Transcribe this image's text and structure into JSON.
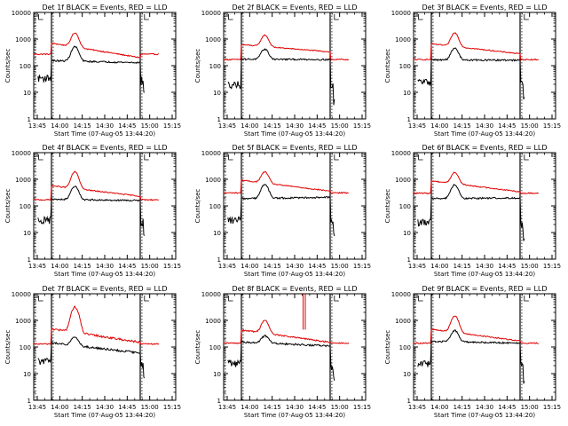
{
  "chart_data": [
    {
      "type": "line",
      "title": "Det 1f BLACK = Events, RED = LLD",
      "xlabel": "Start Time (07-Aug-05 13:44:20)",
      "ylabel": "Counts/sec",
      "yscale": "log",
      "ylim": [
        1,
        10000
      ],
      "xlim": [
        0,
        100
      ],
      "x_ticks": [
        "13:45",
        "14:00",
        "14:15",
        "14:30",
        "14:45",
        "15:00",
        "15:15"
      ],
      "y_ticks": [
        "1",
        "10",
        "100",
        "1000",
        "10000"
      ],
      "series": [
        {
          "name": "RED = LLD",
          "color": "#e00000",
          "shape": {
            "base": 320,
            "end": 200,
            "gap": 270,
            "peak": 1700,
            "tail": 270,
            "noise": 0.045
          }
        },
        {
          "name": "BLACK = Events",
          "color": "#000000",
          "shape": {
            "base": 70,
            "end": 130,
            "gap": null,
            "peak": 520,
            "tail": 35,
            "noise": 0.07
          }
        }
      ]
    },
    {
      "type": "line",
      "title": "Det 2f BLACK = Events, RED = LLD",
      "xlabel": "Start Time (07-Aug-05 13:44:20)",
      "ylabel": "Counts/sec",
      "yscale": "log",
      "ylim": [
        1,
        10000
      ],
      "xlim": [
        0,
        100
      ],
      "x_ticks": [
        "13:45",
        "14:00",
        "14:15",
        "14:30",
        "14:45",
        "15:00",
        "15:15"
      ],
      "y_ticks": [
        "1",
        "10",
        "100",
        "1000",
        "10000"
      ],
      "series": [
        {
          "name": "RED = LLD",
          "color": "#e00000",
          "shape": {
            "base": 280,
            "end": 330,
            "gap": 170,
            "peak": 1400,
            "tail": 170,
            "noise": 0.045
          }
        },
        {
          "name": "BLACK = Events",
          "color": "#000000",
          "shape": {
            "base": 80,
            "end": 170,
            "gap": null,
            "peak": 420,
            "tail": 20,
            "noise": 0.07
          }
        }
      ]
    },
    {
      "type": "line",
      "title": "Det 3f BLACK = Events, RED = LLD",
      "xlabel": "Start Time (07-Aug-05 13:44:20)",
      "ylabel": "Counts/sec",
      "yscale": "log",
      "ylim": [
        1,
        10000
      ],
      "xlim": [
        0,
        100
      ],
      "x_ticks": [
        "13:45",
        "14:00",
        "14:15",
        "14:30",
        "14:45",
        "15:00",
        "15:15"
      ],
      "y_ticks": [
        "1",
        "10",
        "100",
        "1000",
        "10000"
      ],
      "series": [
        {
          "name": "RED = LLD",
          "color": "#e00000",
          "shape": {
            "base": 300,
            "end": 280,
            "gap": 170,
            "peak": 1700,
            "tail": 170,
            "noise": 0.045
          }
        },
        {
          "name": "BLACK = Events",
          "color": "#000000",
          "shape": {
            "base": 75,
            "end": 160,
            "gap": null,
            "peak": 450,
            "tail": 25,
            "noise": 0.07
          }
        }
      ]
    },
    {
      "type": "line",
      "title": "Det 4f BLACK = Events, RED = LLD",
      "xlabel": "Start Time (07-Aug-05 13:44:20)",
      "ylabel": "Counts/sec",
      "yscale": "log",
      "ylim": [
        1,
        10000
      ],
      "xlim": [
        0,
        100
      ],
      "x_ticks": [
        "13:45",
        "14:00",
        "14:15",
        "14:30",
        "14:45",
        "15:00",
        "15:15"
      ],
      "y_ticks": [
        "1",
        "10",
        "100",
        "1000",
        "10000"
      ],
      "series": [
        {
          "name": "RED = LLD",
          "color": "#e00000",
          "shape": {
            "base": 260,
            "end": 230,
            "gap": 170,
            "peak": 1900,
            "tail": 170,
            "noise": 0.045
          }
        },
        {
          "name": "BLACK = Events",
          "color": "#000000",
          "shape": {
            "base": 80,
            "end": 160,
            "gap": null,
            "peak": 550,
            "tail": 30,
            "noise": 0.07
          }
        }
      ]
    },
    {
      "type": "line",
      "title": "Det 5f BLACK = Events, RED = LLD",
      "xlabel": "Start Time (07-Aug-05 13:44:20)",
      "ylabel": "Counts/sec",
      "yscale": "log",
      "ylim": [
        1,
        10000
      ],
      "xlim": [
        0,
        100
      ],
      "x_ticks": [
        "13:45",
        "14:00",
        "14:15",
        "14:30",
        "14:45",
        "15:00",
        "15:15"
      ],
      "y_ticks": [
        "1",
        "10",
        "100",
        "1000",
        "10000"
      ],
      "series": [
        {
          "name": "RED = LLD",
          "color": "#e00000",
          "shape": {
            "base": 420,
            "end": 360,
            "gap": 310,
            "peak": 1900,
            "tail": 310,
            "noise": 0.045
          }
        },
        {
          "name": "BLACK = Events",
          "color": "#000000",
          "shape": {
            "base": 85,
            "end": 210,
            "gap": null,
            "peak": 650,
            "tail": 30,
            "noise": 0.07
          }
        }
      ]
    },
    {
      "type": "line",
      "title": "Det 6f BLACK = Events, RED = LLD",
      "xlabel": "Start Time (07-Aug-05 13:44:20)",
      "ylabel": "Counts/sec",
      "yscale": "log",
      "ylim": [
        1,
        10000
      ],
      "xlim": [
        0,
        100
      ],
      "x_ticks": [
        "13:45",
        "14:00",
        "14:15",
        "14:30",
        "14:45",
        "15:00",
        "15:15"
      ],
      "y_ticks": [
        "1",
        "10",
        "100",
        "1000",
        "10000"
      ],
      "series": [
        {
          "name": "RED = LLD",
          "color": "#e00000",
          "shape": {
            "base": 400,
            "end": 340,
            "gap": 300,
            "peak": 1800,
            "tail": 300,
            "noise": 0.045
          }
        },
        {
          "name": "BLACK = Events",
          "color": "#000000",
          "shape": {
            "base": 85,
            "end": 200,
            "gap": null,
            "peak": 620,
            "tail": 25,
            "noise": 0.07
          }
        }
      ]
    },
    {
      "type": "line",
      "title": "Det 7f BLACK = Events, RED = LLD",
      "xlabel": "Start Time (07-Aug-05 13:44:20)",
      "ylabel": "Counts/sec",
      "yscale": "log",
      "ylim": [
        1,
        10000
      ],
      "xlim": [
        0,
        100
      ],
      "x_ticks": [
        "13:45",
        "14:00",
        "14:15",
        "14:30",
        "14:45",
        "15:00",
        "15:15"
      ],
      "y_ticks": [
        "1",
        "10",
        "100",
        "1000",
        "10000"
      ],
      "series": [
        {
          "name": "RED = LLD",
          "color": "#e00000",
          "shape": {
            "base": 220,
            "end": 150,
            "gap": 130,
            "peak": 3200,
            "tail": 130,
            "noise": 0.09
          }
        },
        {
          "name": "BLACK = Events",
          "color": "#000000",
          "shape": {
            "base": 65,
            "end": 60,
            "gap": null,
            "peak": 250,
            "tail": 30,
            "noise": 0.09
          }
        }
      ]
    },
    {
      "type": "line",
      "title": "Det 8f BLACK = Events, RED = LLD",
      "xlabel": "Start Time (07-Aug-05 13:44:20)",
      "ylabel": "Counts/sec",
      "yscale": "log",
      "ylim": [
        1,
        10000
      ],
      "xlim": [
        0,
        100
      ],
      "x_ticks": [
        "13:45",
        "14:00",
        "14:15",
        "14:30",
        "14:45",
        "15:00",
        "15:15"
      ],
      "y_ticks": [
        "1",
        "10",
        "100",
        "1000",
        "10000"
      ],
      "series": [
        {
          "name": "RED = LLD",
          "color": "#e00000",
          "shape": {
            "base": 200,
            "end": 150,
            "gap": 140,
            "peak": 1000,
            "tail": 140,
            "noise": 0.06,
            "spike": true
          }
        },
        {
          "name": "BLACK = Events",
          "color": "#000000",
          "shape": {
            "base": 70,
            "end": 110,
            "gap": null,
            "peak": 260,
            "tail": 25,
            "noise": 0.08
          }
        }
      ]
    },
    {
      "type": "line",
      "title": "Det 9f BLACK = Events, RED = LLD",
      "xlabel": "Start Time (07-Aug-05 13:44:20)",
      "ylabel": "Counts/sec",
      "yscale": "log",
      "ylim": [
        1,
        10000
      ],
      "xlim": [
        0,
        100
      ],
      "x_ticks": [
        "13:45",
        "14:00",
        "14:15",
        "14:30",
        "14:45",
        "15:00",
        "15:15"
      ],
      "y_ticks": [
        "1",
        "10",
        "100",
        "1000",
        "10000"
      ],
      "series": [
        {
          "name": "RED = LLD",
          "color": "#e00000",
          "shape": {
            "base": 210,
            "end": 170,
            "gap": 140,
            "peak": 1500,
            "tail": 140,
            "noise": 0.05
          }
        },
        {
          "name": "BLACK = Events",
          "color": "#000000",
          "shape": {
            "base": 75,
            "end": 140,
            "gap": null,
            "peak": 420,
            "tail": 25,
            "noise": 0.07
          }
        }
      ]
    }
  ]
}
